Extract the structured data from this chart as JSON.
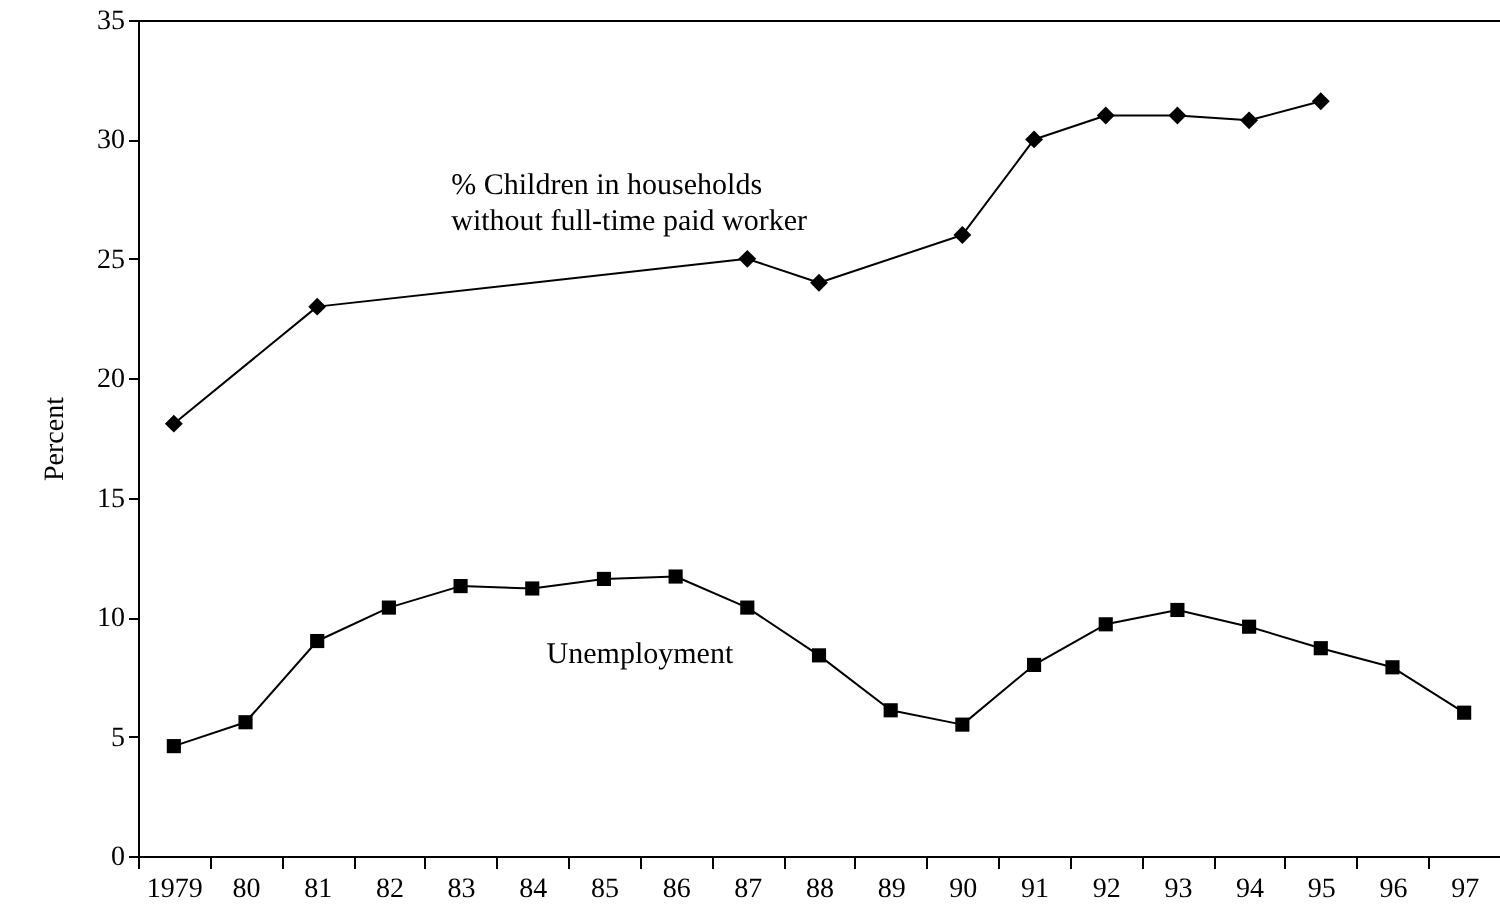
{
  "chart_data": {
    "type": "line",
    "ylabel": "Percent",
    "categories": [
      "1979",
      "80",
      "81",
      "82",
      "83",
      "84",
      "85",
      "86",
      "87",
      "88",
      "89",
      "90",
      "91",
      "92",
      "93",
      "94",
      "95",
      "96",
      "97"
    ],
    "series": [
      {
        "name": "% Children in households without full-time paid worker",
        "color": "#000000",
        "marker": "diamond",
        "values": [
          18.1,
          null,
          23.0,
          null,
          null,
          null,
          null,
          null,
          25.0,
          24.0,
          null,
          26.0,
          30.0,
          31.0,
          31.0,
          30.8,
          31.6,
          null,
          null
        ]
      },
      {
        "name": "Unemployment",
        "color": "#000000",
        "marker": "square",
        "values": [
          4.6,
          5.6,
          9.0,
          10.4,
          11.3,
          11.2,
          11.6,
          11.7,
          10.4,
          8.4,
          6.1,
          5.5,
          8.0,
          9.7,
          10.3,
          9.6,
          8.7,
          7.9,
          6.0
        ]
      }
    ],
    "ylim": [
      0,
      35
    ],
    "yticks": [
      0,
      5,
      10,
      15,
      20,
      25,
      30,
      35
    ],
    "grid": false,
    "line_style": "solid"
  }
}
